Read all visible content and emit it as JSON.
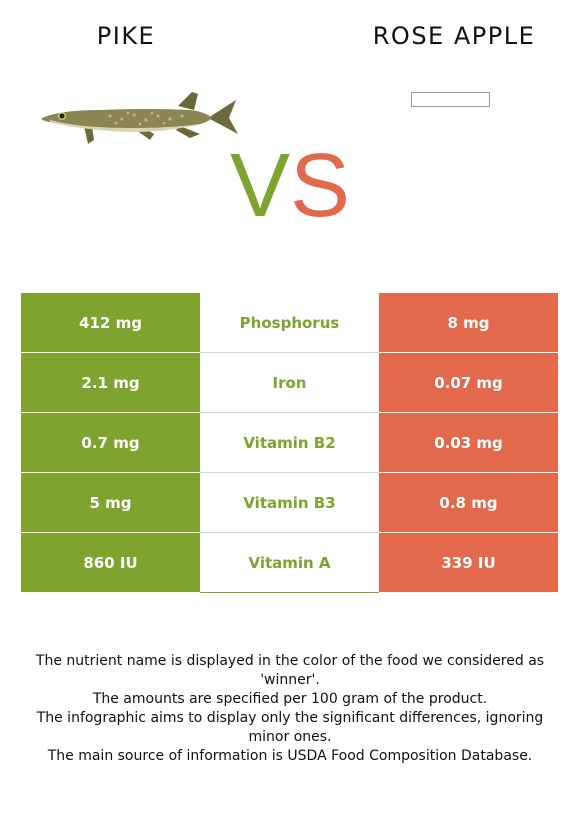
{
  "header": {
    "left_title": "PIKE",
    "right_title": "ROSE APPLE",
    "vs_v": "V",
    "vs_s": "S"
  },
  "colors": {
    "winner_green": "#7ea32e",
    "other_orange": "#e2694b"
  },
  "rows": [
    {
      "left": "412 mg",
      "nutrient": "Phosphorus",
      "right": "8 mg"
    },
    {
      "left": "2.1 mg",
      "nutrient": "Iron",
      "right": "0.07 mg"
    },
    {
      "left": "0.7 mg",
      "nutrient": "Vitamin B2",
      "right": "0.03 mg"
    },
    {
      "left": "5 mg",
      "nutrient": "Vitamin B3",
      "right": "0.8 mg"
    },
    {
      "left": "860 IU",
      "nutrient": "Vitamin A",
      "right": "339 IU"
    }
  ],
  "notes": [
    "The nutrient name is displayed in the color of the food we considered as 'winner'.",
    "The amounts are specified per 100 gram of the product.",
    "The infographic aims to display only the significant differences, ignoring minor ones.",
    "The main source of information is USDA Food Composition Database."
  ]
}
